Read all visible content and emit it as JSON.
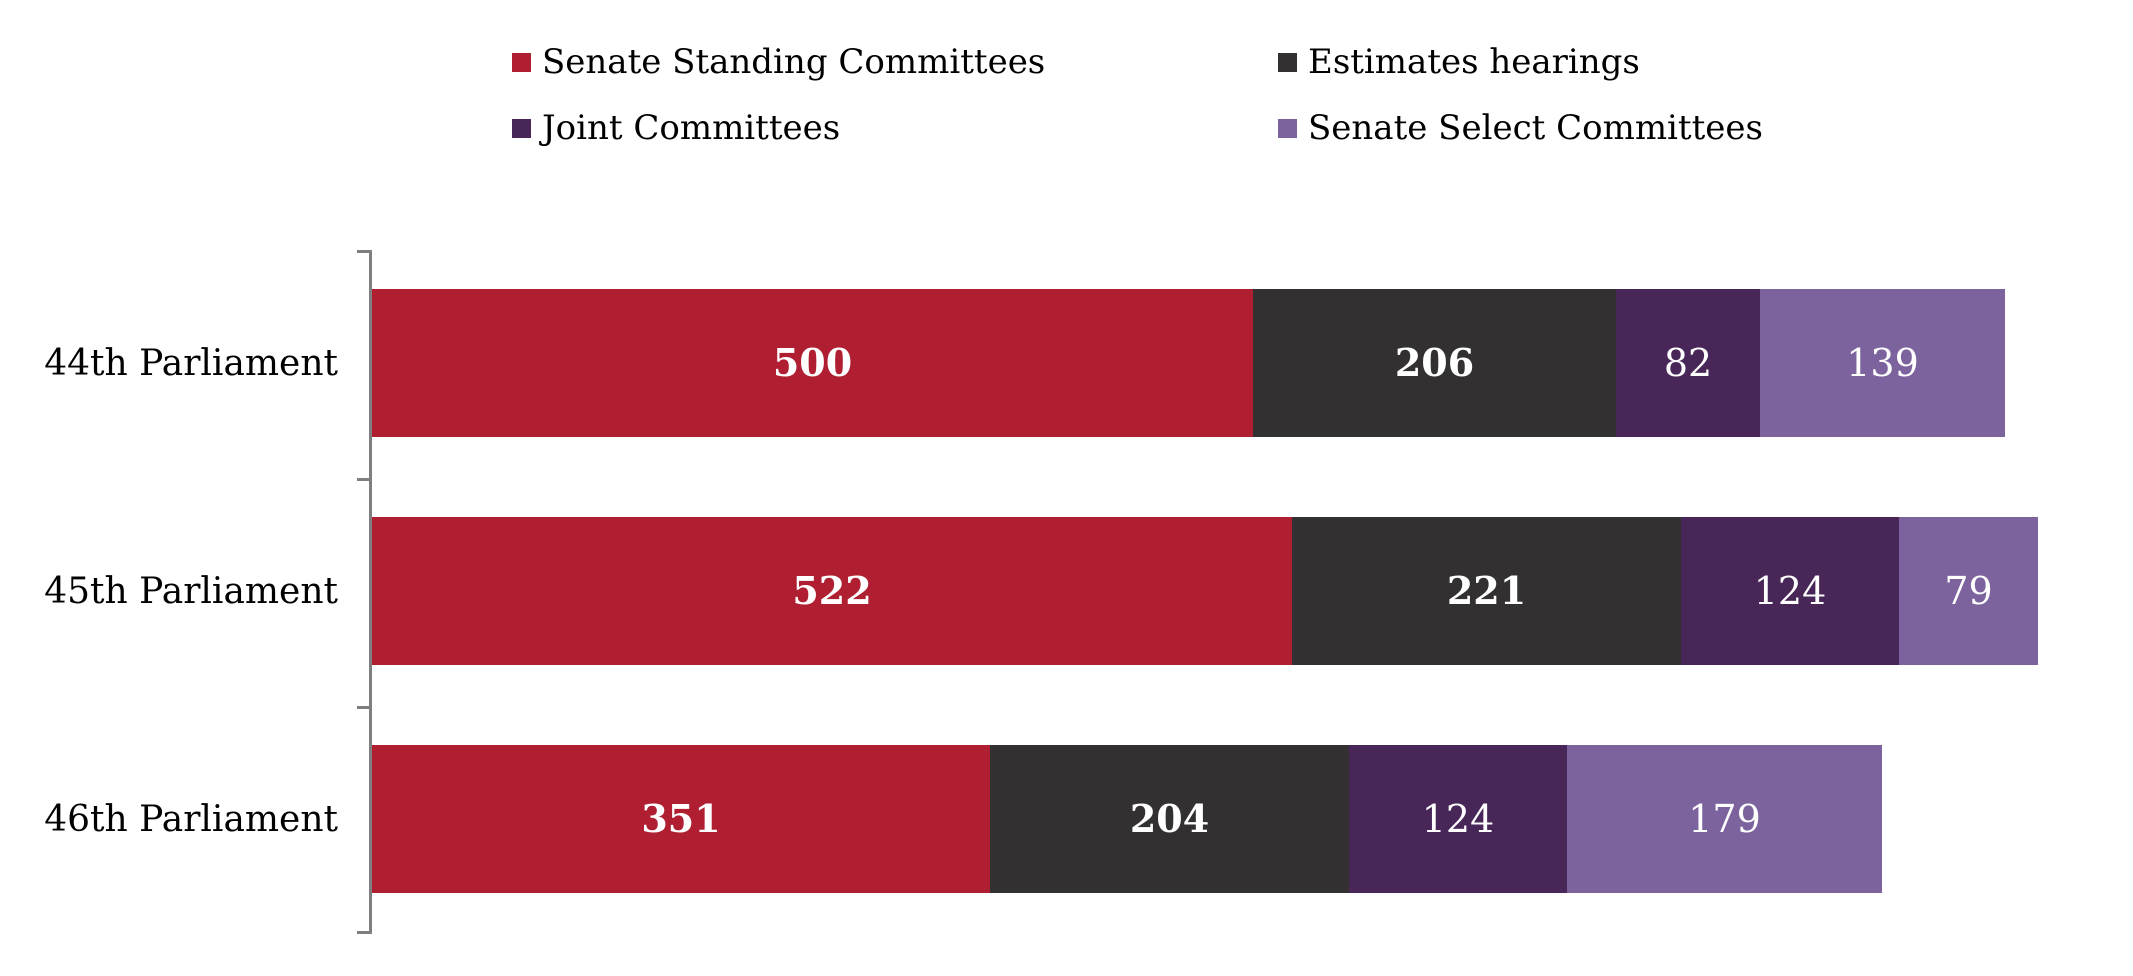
{
  "chart_data": {
    "type": "bar",
    "orientation": "horizontal",
    "stacked": true,
    "title": "",
    "categories": [
      "44th Parliament",
      "45th Parliament",
      "46th Parliament"
    ],
    "series": [
      {
        "name": "Senate Standing Committees",
        "color": "#B01E31",
        "values": [
          500,
          522,
          351
        ],
        "value_label_bold": true
      },
      {
        "name": "Estimates hearings",
        "color": "#333031",
        "values": [
          206,
          221,
          204
        ],
        "value_label_bold": true
      },
      {
        "name": "Joint Committees",
        "color": "#482758",
        "values": [
          82,
          124,
          124
        ],
        "value_label_bold": false
      },
      {
        "name": "Senate Select Committees",
        "color": "#7C639E",
        "values": [
          139,
          79,
          179
        ],
        "value_label_bold": false
      }
    ],
    "value_labels_position": "inside-center",
    "value_label_color": "#ffffff",
    "legend_position": "top",
    "grid": false,
    "axis_color": "#7f7f7f",
    "text_color": "#000000",
    "background_color": "#ffffff"
  }
}
